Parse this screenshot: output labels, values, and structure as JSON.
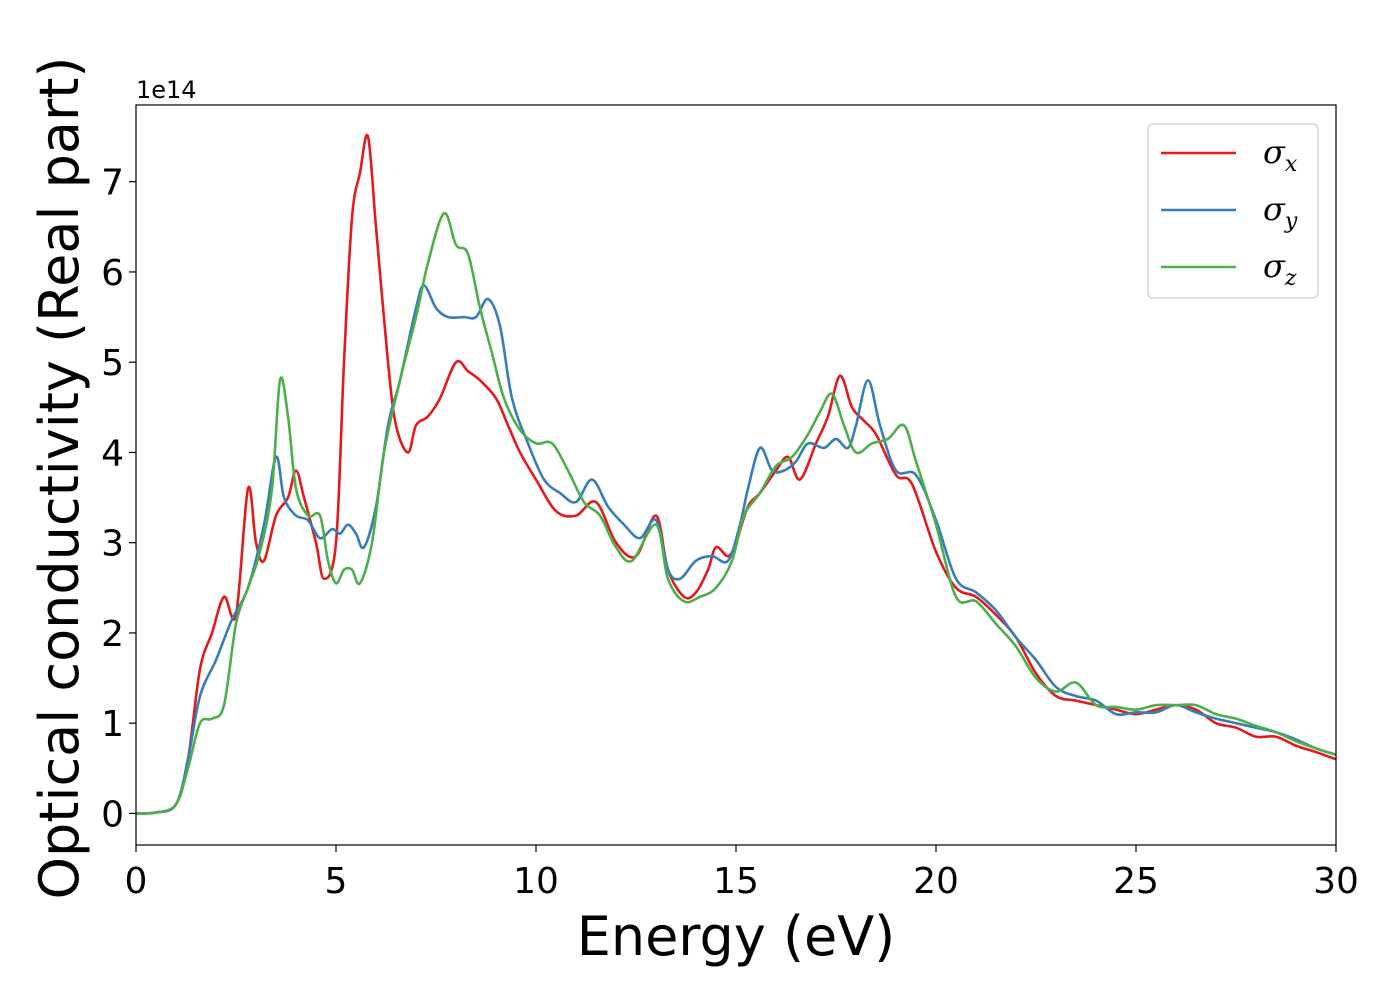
{
  "chart_data": {
    "type": "line",
    "title": "",
    "xlabel": "Energy (eV)",
    "ylabel": "Optical conductivity (Real part)",
    "y_offset_label": "1e14",
    "xlim": [
      0,
      30
    ],
    "ylim": [
      -0.35,
      7.85
    ],
    "xticks": [
      0,
      5,
      10,
      15,
      20,
      25,
      30
    ],
    "xtick_labels": [
      "0",
      "5",
      "10",
      "15",
      "20",
      "25",
      "30"
    ],
    "yticks": [
      0,
      1,
      2,
      3,
      4,
      5,
      6,
      7
    ],
    "ytick_labels": [
      "0",
      "1",
      "2",
      "3",
      "4",
      "5",
      "6",
      "7"
    ],
    "grid": false,
    "legend_position": "top-right",
    "series": [
      {
        "name": "σx",
        "symbol": "σ",
        "subscript": "x",
        "color": "#e41a1c",
        "points": [
          [
            0,
            0
          ],
          [
            0.5,
            0.01
          ],
          [
            1,
            0.1
          ],
          [
            1.3,
            0.6
          ],
          [
            1.6,
            1.6
          ],
          [
            1.9,
            2.0
          ],
          [
            2.2,
            2.4
          ],
          [
            2.5,
            2.2
          ],
          [
            2.8,
            3.6
          ],
          [
            3.0,
            3.0
          ],
          [
            3.2,
            2.8
          ],
          [
            3.5,
            3.3
          ],
          [
            3.8,
            3.5
          ],
          [
            4.0,
            3.8
          ],
          [
            4.2,
            3.5
          ],
          [
            4.5,
            3.0
          ],
          [
            4.7,
            2.6
          ],
          [
            5.0,
            3.0
          ],
          [
            5.2,
            5.0
          ],
          [
            5.4,
            6.6
          ],
          [
            5.6,
            7.1
          ],
          [
            5.8,
            7.5
          ],
          [
            6.0,
            6.5
          ],
          [
            6.3,
            5.0
          ],
          [
            6.5,
            4.3
          ],
          [
            6.8,
            4.0
          ],
          [
            7.0,
            4.3
          ],
          [
            7.3,
            4.4
          ],
          [
            7.6,
            4.6
          ],
          [
            8.0,
            5.0
          ],
          [
            8.3,
            4.9
          ],
          [
            8.6,
            4.8
          ],
          [
            9.0,
            4.6
          ],
          [
            9.3,
            4.3
          ],
          [
            9.6,
            4.0
          ],
          [
            10.0,
            3.7
          ],
          [
            10.5,
            3.35
          ],
          [
            11.0,
            3.3
          ],
          [
            11.5,
            3.45
          ],
          [
            12.0,
            3.0
          ],
          [
            12.5,
            2.85
          ],
          [
            13.0,
            3.3
          ],
          [
            13.3,
            2.7
          ],
          [
            13.7,
            2.4
          ],
          [
            14.0,
            2.45
          ],
          [
            14.3,
            2.7
          ],
          [
            14.5,
            2.95
          ],
          [
            14.8,
            2.85
          ],
          [
            15.0,
            3.0
          ],
          [
            15.3,
            3.4
          ],
          [
            15.6,
            3.55
          ],
          [
            16.0,
            3.8
          ],
          [
            16.3,
            3.95
          ],
          [
            16.6,
            3.7
          ],
          [
            17.0,
            4.1
          ],
          [
            17.3,
            4.4
          ],
          [
            17.6,
            4.85
          ],
          [
            17.9,
            4.5
          ],
          [
            18.2,
            4.35
          ],
          [
            18.5,
            4.2
          ],
          [
            19.0,
            3.75
          ],
          [
            19.4,
            3.65
          ],
          [
            20.0,
            2.9
          ],
          [
            20.5,
            2.5
          ],
          [
            21.0,
            2.4
          ],
          [
            21.5,
            2.2
          ],
          [
            22.0,
            1.95
          ],
          [
            22.5,
            1.55
          ],
          [
            23.0,
            1.3
          ],
          [
            23.5,
            1.25
          ],
          [
            24.0,
            1.2
          ],
          [
            24.5,
            1.15
          ],
          [
            25.0,
            1.1
          ],
          [
            25.5,
            1.15
          ],
          [
            26.0,
            1.2
          ],
          [
            26.5,
            1.15
          ],
          [
            27.0,
            1.0
          ],
          [
            27.5,
            0.95
          ],
          [
            28.0,
            0.85
          ],
          [
            28.5,
            0.85
          ],
          [
            29.0,
            0.75
          ],
          [
            29.5,
            0.68
          ],
          [
            30.0,
            0.6
          ]
        ]
      },
      {
        "name": "σy",
        "symbol": "σ",
        "subscript": "y",
        "color": "#377eb8",
        "points": [
          [
            0,
            0
          ],
          [
            0.5,
            0.01
          ],
          [
            1,
            0.1
          ],
          [
            1.3,
            0.6
          ],
          [
            1.6,
            1.3
          ],
          [
            2.0,
            1.7
          ],
          [
            2.4,
            2.15
          ],
          [
            2.8,
            2.5
          ],
          [
            3.2,
            3.2
          ],
          [
            3.5,
            3.95
          ],
          [
            3.7,
            3.5
          ],
          [
            4.0,
            3.3
          ],
          [
            4.3,
            3.25
          ],
          [
            4.6,
            3.05
          ],
          [
            4.9,
            3.15
          ],
          [
            5.1,
            3.1
          ],
          [
            5.3,
            3.2
          ],
          [
            5.5,
            3.1
          ],
          [
            5.7,
            2.95
          ],
          [
            6.0,
            3.4
          ],
          [
            6.3,
            4.3
          ],
          [
            6.6,
            4.8
          ],
          [
            7.0,
            5.6
          ],
          [
            7.2,
            5.85
          ],
          [
            7.5,
            5.6
          ],
          [
            7.8,
            5.5
          ],
          [
            8.2,
            5.5
          ],
          [
            8.5,
            5.5
          ],
          [
            8.8,
            5.7
          ],
          [
            9.1,
            5.4
          ],
          [
            9.4,
            4.6
          ],
          [
            9.8,
            4.1
          ],
          [
            10.2,
            3.7
          ],
          [
            10.6,
            3.55
          ],
          [
            11.0,
            3.45
          ],
          [
            11.4,
            3.7
          ],
          [
            11.8,
            3.4
          ],
          [
            12.2,
            3.2
          ],
          [
            12.6,
            3.05
          ],
          [
            13.0,
            3.25
          ],
          [
            13.3,
            2.7
          ],
          [
            13.6,
            2.6
          ],
          [
            14.0,
            2.8
          ],
          [
            14.4,
            2.85
          ],
          [
            14.8,
            2.8
          ],
          [
            15.1,
            3.2
          ],
          [
            15.3,
            3.6
          ],
          [
            15.6,
            4.05
          ],
          [
            15.9,
            3.8
          ],
          [
            16.2,
            3.8
          ],
          [
            16.5,
            3.9
          ],
          [
            16.8,
            4.1
          ],
          [
            17.2,
            4.05
          ],
          [
            17.5,
            4.15
          ],
          [
            17.8,
            4.05
          ],
          [
            18.0,
            4.3
          ],
          [
            18.3,
            4.8
          ],
          [
            18.6,
            4.3
          ],
          [
            19.0,
            3.8
          ],
          [
            19.5,
            3.75
          ],
          [
            20.0,
            3.25
          ],
          [
            20.5,
            2.6
          ],
          [
            21.0,
            2.45
          ],
          [
            21.5,
            2.25
          ],
          [
            22.0,
            1.95
          ],
          [
            22.5,
            1.7
          ],
          [
            23.0,
            1.4
          ],
          [
            23.5,
            1.3
          ],
          [
            24.0,
            1.25
          ],
          [
            24.5,
            1.1
          ],
          [
            25.0,
            1.12
          ],
          [
            25.5,
            1.12
          ],
          [
            26.0,
            1.2
          ],
          [
            26.5,
            1.12
          ],
          [
            27.0,
            1.05
          ],
          [
            27.5,
            1.0
          ],
          [
            28.0,
            0.95
          ],
          [
            28.5,
            0.9
          ],
          [
            29.0,
            0.82
          ],
          [
            29.5,
            0.72
          ],
          [
            30.0,
            0.65
          ]
        ]
      },
      {
        "name": "σz",
        "symbol": "σ",
        "subscript": "z",
        "color": "#4daf4a",
        "points": [
          [
            0,
            0
          ],
          [
            0.5,
            0.01
          ],
          [
            1,
            0.1
          ],
          [
            1.3,
            0.5
          ],
          [
            1.6,
            1.0
          ],
          [
            1.9,
            1.05
          ],
          [
            2.2,
            1.2
          ],
          [
            2.5,
            2.1
          ],
          [
            2.8,
            2.5
          ],
          [
            3.1,
            2.9
          ],
          [
            3.4,
            3.6
          ],
          [
            3.6,
            4.8
          ],
          [
            3.8,
            4.4
          ],
          [
            4.0,
            3.6
          ],
          [
            4.3,
            3.3
          ],
          [
            4.6,
            3.3
          ],
          [
            4.8,
            2.8
          ],
          [
            5.0,
            2.55
          ],
          [
            5.2,
            2.7
          ],
          [
            5.4,
            2.7
          ],
          [
            5.6,
            2.55
          ],
          [
            5.9,
            3.0
          ],
          [
            6.2,
            4.0
          ],
          [
            6.6,
            4.8
          ],
          [
            7.0,
            5.5
          ],
          [
            7.3,
            6.1
          ],
          [
            7.7,
            6.65
          ],
          [
            8.0,
            6.3
          ],
          [
            8.3,
            6.2
          ],
          [
            8.6,
            5.6
          ],
          [
            8.9,
            5.1
          ],
          [
            9.2,
            4.6
          ],
          [
            9.6,
            4.25
          ],
          [
            10.0,
            4.1
          ],
          [
            10.4,
            4.1
          ],
          [
            10.8,
            3.8
          ],
          [
            11.2,
            3.45
          ],
          [
            11.6,
            3.3
          ],
          [
            12.0,
            2.95
          ],
          [
            12.4,
            2.8
          ],
          [
            13.0,
            3.2
          ],
          [
            13.3,
            2.6
          ],
          [
            13.7,
            2.35
          ],
          [
            14.1,
            2.4
          ],
          [
            14.5,
            2.5
          ],
          [
            14.9,
            2.8
          ],
          [
            15.2,
            3.3
          ],
          [
            15.6,
            3.55
          ],
          [
            16.0,
            3.85
          ],
          [
            16.4,
            3.95
          ],
          [
            16.8,
            4.2
          ],
          [
            17.1,
            4.45
          ],
          [
            17.4,
            4.65
          ],
          [
            17.7,
            4.3
          ],
          [
            18.0,
            4.0
          ],
          [
            18.4,
            4.1
          ],
          [
            18.8,
            4.15
          ],
          [
            19.2,
            4.3
          ],
          [
            19.5,
            3.9
          ],
          [
            20.0,
            3.2
          ],
          [
            20.5,
            2.4
          ],
          [
            21.0,
            2.35
          ],
          [
            21.5,
            2.1
          ],
          [
            22.0,
            1.85
          ],
          [
            22.5,
            1.5
          ],
          [
            23.0,
            1.35
          ],
          [
            23.5,
            1.45
          ],
          [
            24.0,
            1.2
          ],
          [
            24.5,
            1.18
          ],
          [
            25.0,
            1.15
          ],
          [
            25.5,
            1.2
          ],
          [
            26.0,
            1.2
          ],
          [
            26.5,
            1.2
          ],
          [
            27.0,
            1.1
          ],
          [
            27.5,
            1.05
          ],
          [
            28.0,
            0.97
          ],
          [
            28.5,
            0.9
          ],
          [
            29.0,
            0.8
          ],
          [
            29.5,
            0.72
          ],
          [
            30.0,
            0.65
          ]
        ]
      }
    ]
  }
}
